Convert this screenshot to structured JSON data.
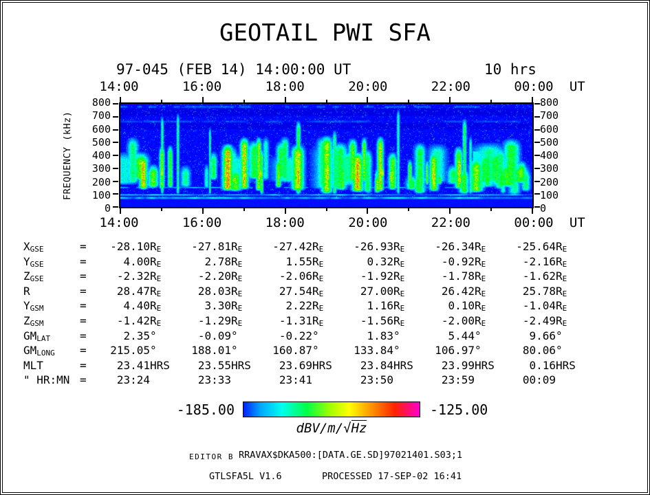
{
  "title": "GEOTAIL PWI SFA",
  "header": {
    "date_label": "97-045 (FEB 14) 14:00:00 UT",
    "duration_label": "10 hrs"
  },
  "axes": {
    "time_labels": [
      "14:00",
      "16:00",
      "18:00",
      "20:00",
      "22:00",
      "00:00"
    ],
    "time_unit": "UT",
    "freq_label": "FREQUENCY (kHz)",
    "freq_ticks": [
      "800",
      "700",
      "600",
      "500",
      "400",
      "300",
      "200",
      "100",
      "0"
    ]
  },
  "ephemeris": {
    "unit_strings": {
      "eq": "=",
      "re_main": " R",
      "re_sub": "E",
      "deg": "°",
      "hrs": " HRS"
    },
    "rows": [
      {
        "label": "X",
        "sub": "GSE",
        "unit": "re",
        "values": [
          "-28.10",
          "-27.81",
          "-27.42",
          "-26.93",
          "-26.34",
          "-25.64"
        ]
      },
      {
        "label": "Y",
        "sub": "GSE",
        "unit": "re",
        "values": [
          "4.00",
          "2.78",
          "1.55",
          "0.32",
          "-0.92",
          "-2.16"
        ]
      },
      {
        "label": "Z",
        "sub": "GSE",
        "unit": "re",
        "values": [
          "-2.32",
          "-2.20",
          "-2.06",
          "-1.92",
          "-1.78",
          "-1.62"
        ]
      },
      {
        "label": "R",
        "sub": "",
        "unit": "re",
        "values": [
          "28.47",
          "28.03",
          "27.54",
          "27.00",
          "26.42",
          "25.78"
        ]
      },
      {
        "label": "Y",
        "sub": "GSM",
        "unit": "re",
        "values": [
          "4.40",
          "3.30",
          "2.22",
          "1.16",
          "0.10",
          "-1.04"
        ]
      },
      {
        "label": "Z",
        "sub": "GSM",
        "unit": "re",
        "values": [
          "-1.42",
          "-1.29",
          "-1.31",
          "-1.56",
          "-2.00",
          "-2.49"
        ]
      },
      {
        "label": "GM",
        "sub": "LAT",
        "unit": "deg",
        "values": [
          "2.35",
          "-0.09",
          "-0.22",
          "1.83",
          "5.44",
          "9.66"
        ]
      },
      {
        "label": "GM",
        "sub": "LONG",
        "unit": "deg",
        "values": [
          "215.05",
          "188.01",
          "160.87",
          "133.84",
          "106.97",
          "80.06"
        ]
      },
      {
        "label": "MLT",
        "sub": "",
        "unit": "hrs",
        "values": [
          "23.41",
          "23.55",
          "23.69",
          "23.84",
          "23.99",
          "0.16"
        ]
      },
      {
        "label": "\" HR:MN",
        "sub": "",
        "unit": "none",
        "values": [
          "23:24",
          "23:33",
          "23:41",
          "23:50",
          "23:59",
          "00:09"
        ]
      }
    ]
  },
  "colorbar": {
    "min_label": "-185.00",
    "max_label": "-125.00",
    "units_prefix": "dBV/m/",
    "units_radical": "√",
    "units_radicand": "Hz",
    "gradient": [
      [
        "#0022ff",
        0
      ],
      [
        "#00aaff",
        10
      ],
      [
        "#00ffee",
        22
      ],
      [
        "#00ff44",
        36
      ],
      [
        "#aaff00",
        50
      ],
      [
        "#ffff00",
        60
      ],
      [
        "#ff8800",
        74
      ],
      [
        "#ff2200",
        86
      ],
      [
        "#ff00cc",
        100
      ]
    ]
  },
  "footer": {
    "editor": "EDITOR B",
    "file": "RRAVAX$DKA500:[DATA.GE.SD]97021401.S03;1",
    "program": "GTLSFA5L V1.6",
    "processed": "PROCESSED 17-SEP-02  16:41"
  },
  "chart_data": {
    "type": "heatmap",
    "title": "GEOTAIL PWI SFA",
    "x": {
      "label": "UT",
      "start": "14:00",
      "end": "00:00",
      "span_hours": 10,
      "ticks": [
        "14:00",
        "16:00",
        "18:00",
        "20:00",
        "22:00",
        "00:00"
      ]
    },
    "y": {
      "label": "FREQUENCY (kHz)",
      "min": 0,
      "max": 800,
      "ticks": [
        0,
        100,
        200,
        300,
        400,
        500,
        600,
        700,
        800
      ]
    },
    "z": {
      "label": "dBV/m/√Hz",
      "min": -185.0,
      "max": -125.0,
      "colormap": "rainbow blue-cyan-green-yellow-red-magenta"
    },
    "features": [
      {
        "name": "low-frequency-continuum",
        "freq_khz": [
          0,
          80
        ],
        "time": [
          "14:00",
          "00:00"
        ],
        "level": "solid saturated blue band"
      },
      {
        "name": "narrowband-line",
        "freq_khz": [
          85,
          100
        ],
        "time": [
          "14:00",
          "00:00"
        ],
        "level": "bright cyan intermittent horizontal line"
      },
      {
        "name": "akr-bursts",
        "freq_khz": [
          100,
          700
        ],
        "time": [
          "14:00",
          "00:00"
        ],
        "level": "dense intermittent green vertical streaks with yellow-orange cores, strongest 200-500 kHz"
      },
      {
        "name": "dense-emission-patch",
        "freq_khz": [
          150,
          430
        ],
        "time": [
          "22:30",
          "23:15"
        ],
        "level": "pale cyan-white dense patch"
      },
      {
        "name": "interference-stripes",
        "freq_khz": [
          560,
          800
        ],
        "time": [
          "14:00",
          "00:00"
        ],
        "level": "horizontal alternating dark/light blue striping"
      }
    ]
  }
}
